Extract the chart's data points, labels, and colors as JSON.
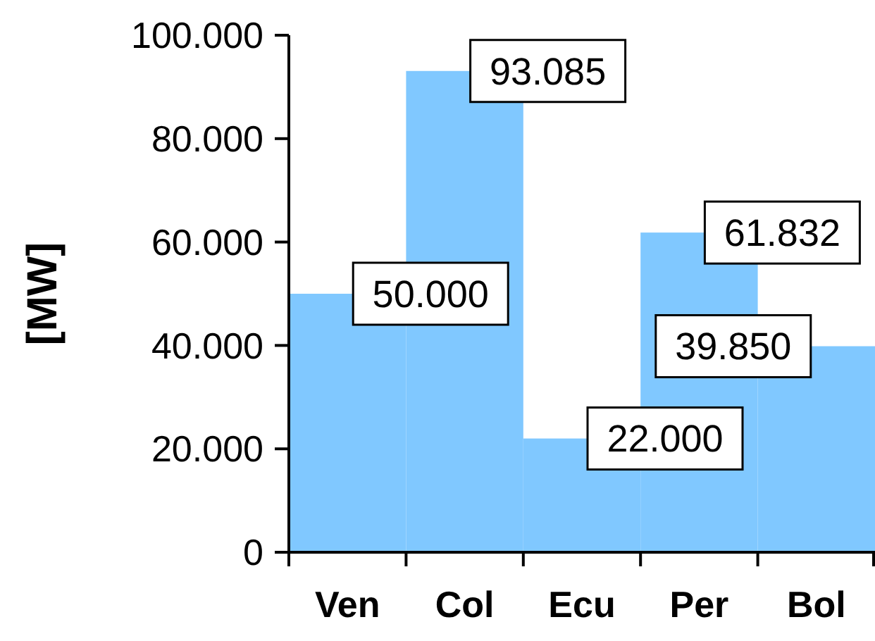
{
  "chart_data": {
    "type": "bar",
    "ylabel": "[MW]",
    "categories": [
      "Ven",
      "Col",
      "Ecu",
      "Per",
      "Bol"
    ],
    "values": [
      50000,
      93085,
      22000,
      61832,
      39850
    ],
    "value_labels": [
      "50.000",
      "93.085",
      "22.000",
      "61.832",
      "39.850"
    ],
    "color": "#80c8ff",
    "ylim": [
      0,
      100000
    ],
    "yticks": [
      {
        "value": 0,
        "label": "0"
      },
      {
        "value": 20000,
        "label": "20.000"
      },
      {
        "value": 40000,
        "label": "40.000"
      },
      {
        "value": 60000,
        "label": "60.000"
      },
      {
        "value": 80000,
        "label": "80.000"
      },
      {
        "value": 100000,
        "label": "100.000"
      }
    ]
  }
}
